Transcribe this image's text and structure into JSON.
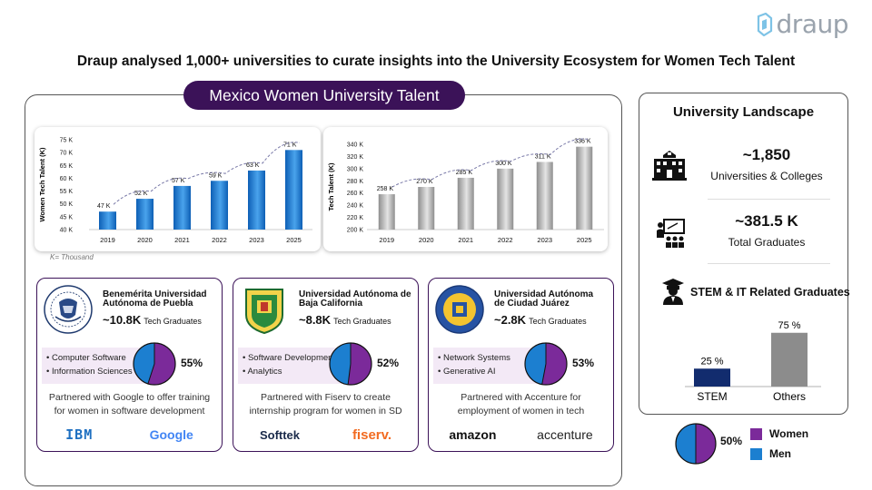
{
  "logo": {
    "text": "draup"
  },
  "headline": "Draup analysed 1,000+ universities to curate insights into the University Ecosystem for Women Tech Talent",
  "main_title": "Mexico Women University Talent",
  "unit_note": "K= Thousand",
  "colors": {
    "brand_dark": "#3b1258",
    "women": "#7b2a9a",
    "men": "#1c7fd0",
    "blue_bar": "#1470c8",
    "grey_bar": "#a8a8a8",
    "stem_bar": "#122c6e",
    "others_bar": "#8c8c8c"
  },
  "chart_data": [
    {
      "type": "bar",
      "categories": [
        "2019",
        "2020",
        "2021",
        "2022",
        "2023",
        "2025"
      ],
      "values": [
        47,
        52,
        57,
        59,
        63,
        71
      ],
      "labels": [
        "47 K",
        "52 K",
        "57 K",
        "59 K",
        "63 K",
        "71 K"
      ],
      "ylabel": "Women Tech Talent (K)",
      "ylim": [
        40,
        75
      ],
      "yticks": [
        "40 K",
        "45 K",
        "50 K",
        "55 K",
        "60 K",
        "65 K",
        "70 K",
        "75 K"
      ],
      "trendline": "dashed",
      "color": "blue"
    },
    {
      "type": "bar",
      "categories": [
        "2019",
        "2020",
        "2021",
        "2022",
        "2023",
        "2025"
      ],
      "values": [
        258,
        270,
        285,
        300,
        311,
        336
      ],
      "labels": [
        "258 K",
        "270 K",
        "285 K",
        "300 K",
        "311 K",
        "336 K"
      ],
      "ylabel": "Tech Talent (K)",
      "ylim": [
        200,
        340
      ],
      "yticks": [
        "200 K",
        "220 K",
        "240 K",
        "260 K",
        "280 K",
        "300 K",
        "320 K",
        "340 K"
      ],
      "trendline": "dashed",
      "color": "grey"
    },
    {
      "type": "bar",
      "categories": [
        "STEM",
        "Others"
      ],
      "values": [
        25,
        75
      ],
      "labels": [
        "25 %",
        "75 %"
      ],
      "title": "STEM & IT Related Graduates",
      "ylim": [
        0,
        100
      ]
    },
    {
      "type": "pie",
      "categories": [
        "Women",
        "Men"
      ],
      "values": [
        55,
        45
      ],
      "label": "55%"
    },
    {
      "type": "pie",
      "categories": [
        "Women",
        "Men"
      ],
      "values": [
        52,
        48
      ],
      "label": "52%"
    },
    {
      "type": "pie",
      "categories": [
        "Women",
        "Men"
      ],
      "values": [
        53,
        47
      ],
      "label": "53%"
    },
    {
      "type": "pie",
      "categories": [
        "Women",
        "Men"
      ],
      "values": [
        50,
        50
      ],
      "label": "50%",
      "legend": [
        "Women",
        "Men"
      ]
    }
  ],
  "universities": [
    {
      "name": "Benemérita Universidad Autónoma de Puebla",
      "name_lines": [
        "Benemérita Universidad",
        "Autónoma de Puebla"
      ],
      "grads": "~10.8K",
      "grads_label": "Tech Graduates",
      "skills": [
        "• Computer Software",
        "• Information Sciences"
      ],
      "women_pct": 55,
      "women_pct_label": "55%",
      "partner_text": "Partnered with Google to offer training for women in software development",
      "partner_lines": [
        "Partnered with Google to offer training",
        "for women in software development"
      ],
      "logos": [
        "IBM",
        "Google"
      ]
    },
    {
      "name": "Universidad Autónoma de Baja California",
      "name_lines": [
        "Universidad Autónoma de",
        "Baja California"
      ],
      "grads": "~8.8K",
      "grads_label": "Tech Graduates",
      "skills": [
        "• Software Development",
        "• Analytics"
      ],
      "women_pct": 52,
      "women_pct_label": "52%",
      "partner_text": "Partnered with Fiserv to create internship program for women in SD",
      "partner_lines": [
        "Partnered with Fiserv to create",
        "internship program for women in SD"
      ],
      "logos": [
        "Softtek",
        "fiserv."
      ]
    },
    {
      "name": "Universidad Autónoma de Ciudad Juárez",
      "name_lines": [
        "Universidad Autónoma",
        "de Ciudad Juárez"
      ],
      "grads": "~2.8K",
      "grads_label": "Tech Graduates",
      "skills": [
        "• Network Systems",
        "• Generative AI"
      ],
      "women_pct": 53,
      "women_pct_label": "53%",
      "partner_text": "Partnered with Accenture for employment of women in tech",
      "partner_lines": [
        "Partnered with Accenture for",
        "employment of women in tech"
      ],
      "logos": [
        "amazon",
        "accenture"
      ]
    }
  ],
  "landscape": {
    "title": "University Landscape",
    "universities": {
      "value": "~1,850",
      "label": "Universities & Colleges",
      "icon": "university-building-icon"
    },
    "graduates": {
      "value": "~381.5 K",
      "label": "Total Graduates",
      "icon": "teacher-students-icon"
    },
    "stem": {
      "title": "STEM & IT Related Graduates",
      "icon": "graduate-icon"
    }
  },
  "legend": {
    "pct": "50%",
    "women": "Women",
    "men": "Men"
  }
}
